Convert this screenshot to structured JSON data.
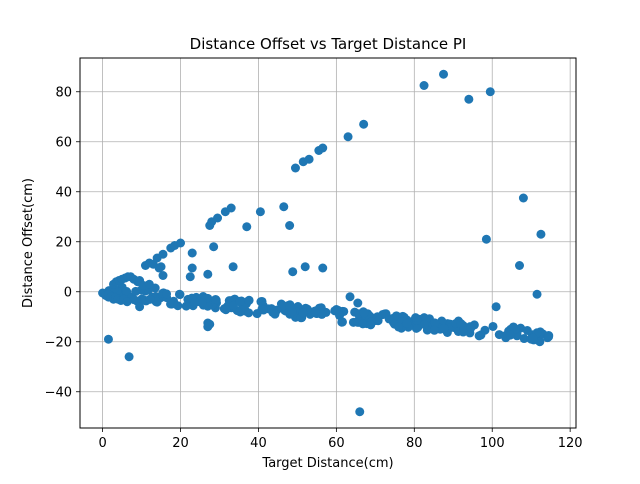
{
  "chart_data": {
    "type": "scatter",
    "title": "Distance Offset vs Target Distance PI",
    "xlabel": "Target Distance(cm)",
    "ylabel": "Distance Offset(cm)",
    "xlim": [
      -5.8,
      121.5
    ],
    "ylim": [
      -54.5,
      93.5
    ],
    "xticks": [
      0,
      20,
      40,
      60,
      80,
      100,
      120
    ],
    "yticks": [
      -40,
      -20,
      0,
      20,
      40,
      60,
      80
    ],
    "xtick_labels": [
      "0",
      "20",
      "40",
      "60",
      "80",
      "100",
      "120"
    ],
    "ytick_labels": [
      "−40",
      "−20",
      "0",
      "20",
      "40",
      "60",
      "80"
    ],
    "grid": true,
    "marker_color": "#1f77b4",
    "series": [
      {
        "band": {
          "count": 260,
          "x_range": [
            0,
            115
          ],
          "y_at_x0": 0,
          "y_at_x115": -18,
          "spread": 2.6
        },
        "points": [
          [
            0,
            -0.5
          ],
          [
            0.8,
            -1.5
          ],
          [
            1.5,
            -1
          ],
          [
            2.2,
            -2
          ],
          [
            2.8,
            -3
          ],
          [
            3.3,
            -2.5
          ],
          [
            4,
            -3
          ],
          [
            4.7,
            -3.5
          ],
          [
            5.5,
            -3
          ],
          [
            6.3,
            -4
          ],
          [
            2.8,
            3
          ],
          [
            3.5,
            4
          ],
          [
            4.2,
            4.5
          ],
          [
            5,
            5
          ],
          [
            5.8,
            5.5
          ],
          [
            6.5,
            6
          ],
          [
            7.2,
            6
          ],
          [
            8,
            5
          ],
          [
            9,
            4
          ],
          [
            9.5,
            4.5
          ],
          [
            10.5,
            2.5
          ],
          [
            12,
            3
          ],
          [
            13.5,
            1.5
          ],
          [
            1.5,
            -19
          ],
          [
            6.8,
            -26
          ],
          [
            9.5,
            -6
          ],
          [
            11,
            10.5
          ],
          [
            12,
            11.5
          ],
          [
            13,
            11
          ],
          [
            14,
            13.5
          ],
          [
            14.5,
            9.5
          ],
          [
            15,
            10
          ],
          [
            15.5,
            15
          ],
          [
            17.5,
            17.5
          ],
          [
            18.5,
            18.5
          ],
          [
            20,
            19.5
          ],
          [
            15.5,
            6.5
          ],
          [
            22.5,
            6
          ],
          [
            23,
            9.5
          ],
          [
            23,
            15.5
          ],
          [
            27,
            7
          ],
          [
            27.5,
            26.5
          ],
          [
            28,
            28
          ],
          [
            28.5,
            18
          ],
          [
            29.5,
            29.5
          ],
          [
            31.5,
            32
          ],
          [
            33,
            33.5
          ],
          [
            33.5,
            10
          ],
          [
            37,
            26
          ],
          [
            40.5,
            32
          ],
          [
            46.5,
            34
          ],
          [
            48,
            26.5
          ],
          [
            48.8,
            8
          ],
          [
            49.5,
            49.5
          ],
          [
            51.5,
            52
          ],
          [
            52,
            10
          ],
          [
            53,
            53
          ],
          [
            55.5,
            56.5
          ],
          [
            56.5,
            9.5
          ],
          [
            56.5,
            57.5
          ],
          [
            63,
            62
          ],
          [
            67,
            67
          ],
          [
            63.5,
            -2
          ],
          [
            65.5,
            -4.5
          ],
          [
            66,
            -48
          ],
          [
            27,
            -12.5
          ],
          [
            27,
            -14
          ],
          [
            27.5,
            -13
          ],
          [
            82.5,
            82.5
          ],
          [
            87.5,
            87
          ],
          [
            94,
            77
          ],
          [
            99.5,
            80
          ],
          [
            98.5,
            21
          ],
          [
            101,
            -6
          ],
          [
            107,
            10.5
          ],
          [
            108,
            37.5
          ],
          [
            110,
            -19
          ],
          [
            111.5,
            -1
          ],
          [
            112.5,
            23
          ],
          [
            114.5,
            -17.5
          ],
          [
            111.5,
            -16.5
          ],
          [
            110.5,
            -18.5
          ],
          [
            109,
            -15.5
          ]
        ]
      }
    ]
  }
}
